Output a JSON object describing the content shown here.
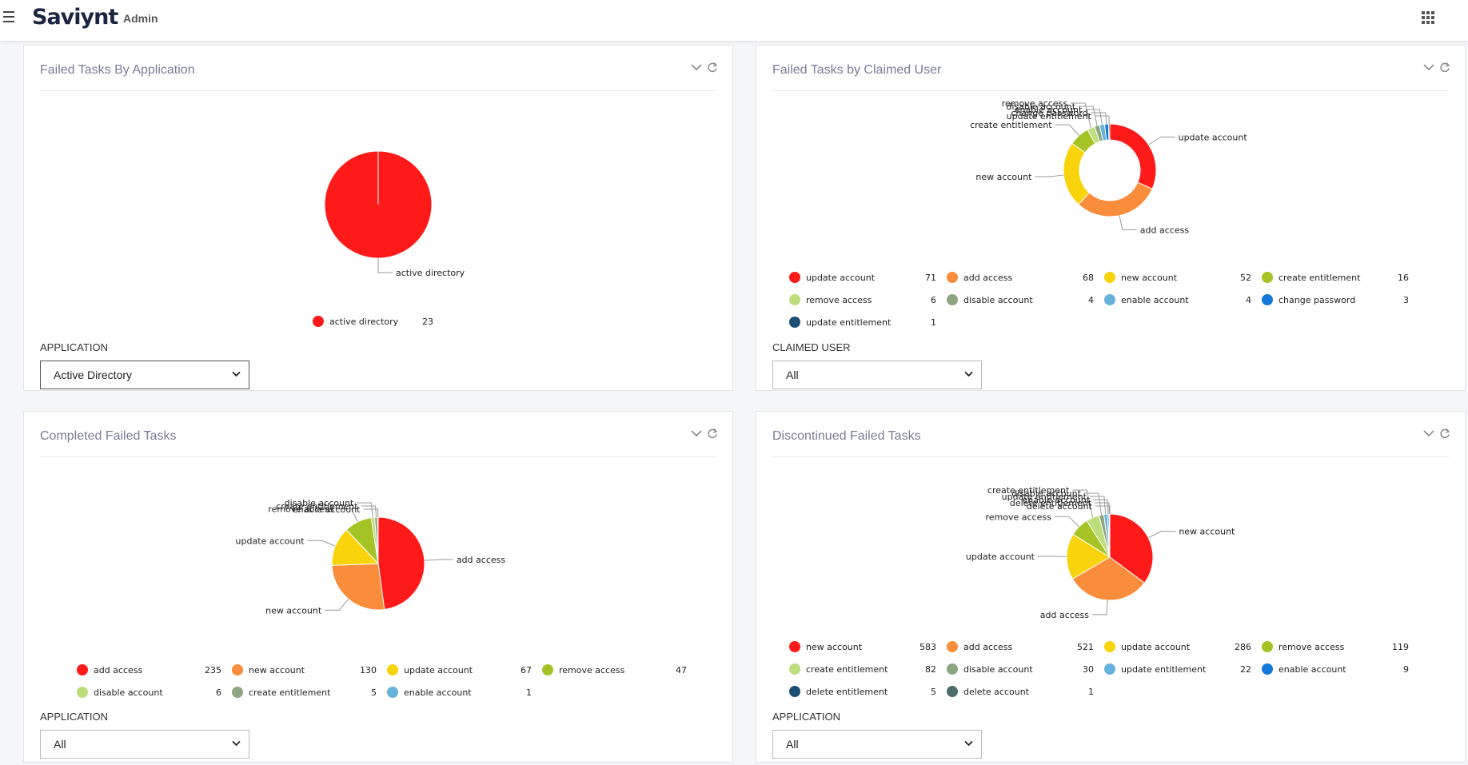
{
  "header": {
    "logo": "Saviynt",
    "section": "Admin"
  },
  "colors": {
    "red": "#ff1a1a",
    "orange": "#fa8d3c",
    "yellow": "#f9d30c",
    "green": "#a3c424",
    "light_green": "#bedd7c",
    "gray_green": "#8fa480",
    "light_blue": "#65b3d9",
    "blue": "#1279d8",
    "navy": "#1d4e75",
    "slate": "#4e6b6b"
  },
  "panels": [
    {
      "title": "Failed Tasks By Application",
      "filter_label": "APPLICATION",
      "filter_value": "Active Directory",
      "chart_data": {
        "type": "pie",
        "title": "Failed Tasks By Application",
        "categories": [
          "active directory"
        ],
        "values": [
          23
        ],
        "legend_position": "bottom"
      }
    },
    {
      "title": "Failed Tasks by Claimed User",
      "filter_label": "CLAIMED USER",
      "filter_value": "All",
      "chart_data": {
        "type": "pie",
        "donut": true,
        "title": "Failed Tasks by Claimed User",
        "categories": [
          "update account",
          "add access",
          "new account",
          "create entitlement",
          "remove access",
          "disable account",
          "enable account",
          "change password",
          "update entitlement"
        ],
        "values": [
          71,
          68,
          52,
          16,
          6,
          4,
          4,
          3,
          1
        ],
        "legend_position": "bottom"
      }
    },
    {
      "title": "Completed Failed Tasks",
      "filter_label": "APPLICATION",
      "filter_value": "All",
      "chart_data": {
        "type": "pie",
        "title": "Completed Failed Tasks",
        "categories": [
          "add access",
          "new account",
          "update account",
          "remove access",
          "disable account",
          "create entitlement",
          "enable account"
        ],
        "values": [
          235,
          130,
          67,
          47,
          6,
          5,
          1
        ],
        "legend_position": "bottom"
      }
    },
    {
      "title": "Discontinued Failed Tasks",
      "filter_label": "APPLICATION",
      "filter_value": "All",
      "chart_data": {
        "type": "pie",
        "title": "Discontinued Failed Tasks",
        "categories": [
          "new account",
          "add access",
          "update account",
          "remove access",
          "create entitlement",
          "disable account",
          "update entitlement",
          "enable account",
          "delete entitlement",
          "delete account"
        ],
        "values": [
          583,
          521,
          286,
          119,
          82,
          30,
          22,
          9,
          5,
          1
        ],
        "legend_position": "bottom"
      }
    }
  ]
}
